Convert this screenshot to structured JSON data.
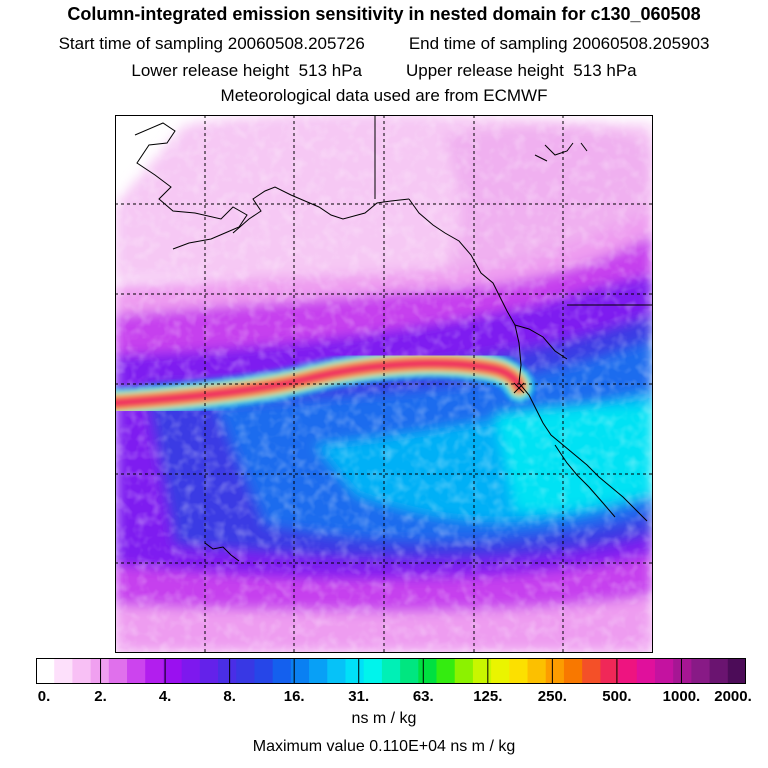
{
  "header": {
    "title": "Column-integrated emission sensitivity in nested domain for c130_060508",
    "start_label": "Start time of sampling",
    "start_value": "20060508.205726",
    "end_label": "End time of sampling",
    "end_value": "20060508.205903",
    "lower_label": "Lower release height",
    "lower_value": "513 hPa",
    "upper_label": "Upper release height",
    "upper_value": "513 hPa",
    "met_text": "Meteorological data used are from ECMWF"
  },
  "chart_data": {
    "type": "heatmap",
    "title": "Column-integrated emission sensitivity in nested domain for c130_060508",
    "domain_grid": {
      "columns": 6,
      "rows": 6,
      "gridlines": "dashed"
    },
    "features": [
      {
        "name": "release-plume",
        "description": "high-sensitivity band extending west from release point near California coast"
      }
    ],
    "colorbar": {
      "labels": [
        "0.",
        "2.",
        "4.",
        "8.",
        "16.",
        "31.",
        "63.",
        "125.",
        "250.",
        "500.",
        "1000.",
        "2000."
      ],
      "colors": [
        "#ffffff",
        "#fde0fb",
        "#f8c0f5",
        "#f0a0f0",
        "#e070ec",
        "#cc44ee",
        "#b21eee",
        "#9a10f0",
        "#7e18ee",
        "#6422ea",
        "#4a2ee6",
        "#3838e4",
        "#2646e8",
        "#1460ee",
        "#0a80f2",
        "#08a0f6",
        "#06c2f8",
        "#00e0f8",
        "#00f4ec",
        "#00f0b6",
        "#00e680",
        "#00e040",
        "#34ec10",
        "#8cf200",
        "#c8f600",
        "#eaf400",
        "#fce000",
        "#fcc000",
        "#fc9c00",
        "#f87800",
        "#f45028",
        "#f02858",
        "#ee1480",
        "#e0109c",
        "#c412a0",
        "#a61694",
        "#881a86",
        "#6a1470",
        "#4c0c58"
      ],
      "unit": "ns m / kg"
    },
    "max_value_text": "Maximum value  0.110E+04 ns m / kg"
  }
}
